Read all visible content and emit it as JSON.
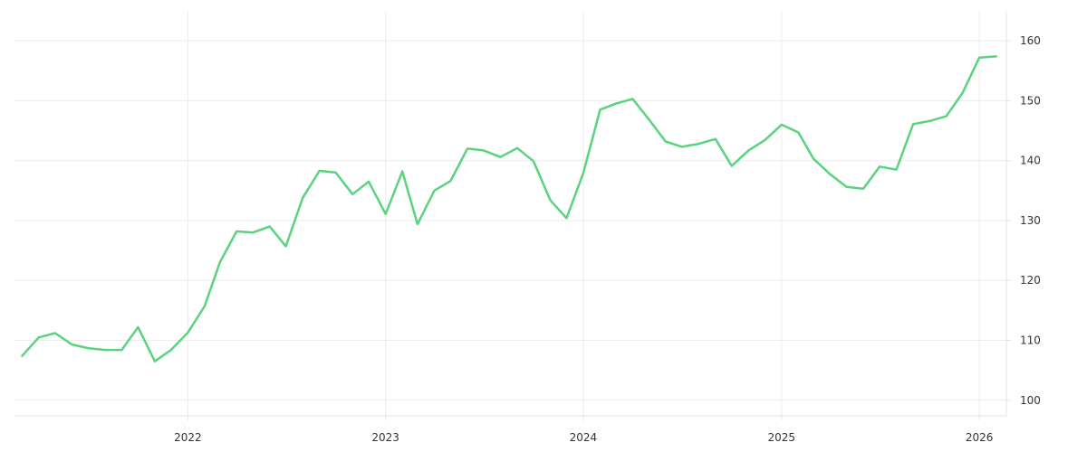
{
  "chart_data": {
    "type": "line",
    "title": "",
    "xlabel": "",
    "ylabel": "",
    "x_ticks": [
      "2022",
      "2023",
      "2024",
      "2025",
      "2026"
    ],
    "y_ticks": [
      100,
      110,
      120,
      130,
      140,
      150,
      160
    ],
    "xlim": [
      "2021-02-15",
      "2026-02-20"
    ],
    "ylim": [
      97.4,
      165.0
    ],
    "y_axis_position": "right",
    "grid": true,
    "legend": "none",
    "color": "#5bd37e",
    "series": [
      {
        "x": [
          "2021-03-01",
          "2021-04-01",
          "2021-05-01",
          "2021-06-01",
          "2021-07-01",
          "2021-08-01",
          "2021-09-01",
          "2021-10-01",
          "2021-11-01",
          "2021-12-01",
          "2022-01-01",
          "2022-02-01",
          "2022-03-01",
          "2022-04-01",
          "2022-05-01",
          "2022-06-01",
          "2022-07-01",
          "2022-08-01",
          "2022-09-01",
          "2022-10-01",
          "2022-11-01",
          "2022-12-01",
          "2023-01-01",
          "2023-02-01",
          "2023-03-01",
          "2023-04-01",
          "2023-05-01",
          "2023-06-01",
          "2023-07-01",
          "2023-08-01",
          "2023-09-01",
          "2023-10-01",
          "2023-11-01",
          "2023-12-01",
          "2024-01-01",
          "2024-02-01",
          "2024-03-01",
          "2024-04-01",
          "2024-05-01",
          "2024-06-01",
          "2024-07-01",
          "2024-08-01",
          "2024-09-01",
          "2024-10-01",
          "2024-11-01",
          "2024-12-01",
          "2025-01-01",
          "2025-02-01",
          "2025-03-01",
          "2025-04-01",
          "2025-05-01",
          "2025-06-01",
          "2025-07-01",
          "2025-08-01",
          "2025-09-01",
          "2025-10-01",
          "2025-11-01",
          "2025-12-01",
          "2026-01-01",
          "2026-02-01"
        ],
        "values": [
          107.4,
          110.5,
          111.2,
          109.3,
          108.7,
          108.4,
          108.4,
          112.2,
          106.5,
          108.4,
          111.3,
          115.7,
          123.0,
          128.2,
          128.0,
          129.0,
          125.7,
          133.8,
          138.3,
          138.0,
          134.4,
          136.5,
          131.1,
          138.2,
          129.4,
          135.0,
          136.6,
          142.0,
          141.7,
          140.6,
          142.1,
          139.9,
          133.4,
          130.4,
          137.9,
          148.5,
          149.5,
          150.3,
          146.9,
          143.2,
          142.3,
          142.8,
          143.6,
          139.1,
          141.7,
          143.4,
          146.0,
          144.7,
          140.3,
          137.7,
          135.6,
          135.3,
          139.0,
          138.5,
          146.1,
          146.6,
          147.4,
          151.3,
          157.2,
          157.4
        ]
      }
    ]
  }
}
